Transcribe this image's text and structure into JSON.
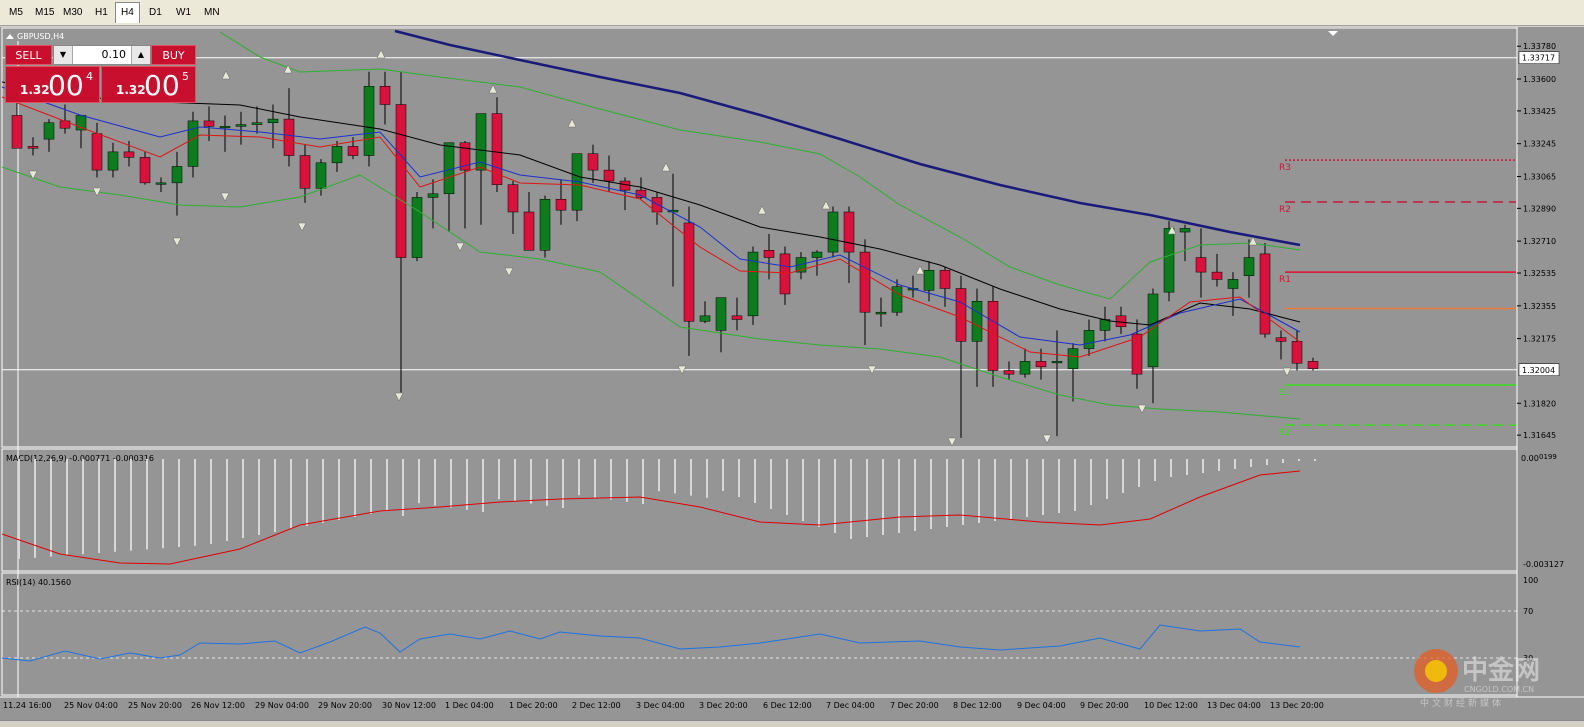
{
  "timeframes": [
    "M5",
    "M15",
    "M30",
    "H1",
    "H4",
    "D1",
    "W1",
    "MN"
  ],
  "active_timeframe": "H4",
  "symbol_label": "GBPUSD,H4",
  "trade_panel": {
    "sell_label": "SELL",
    "buy_label": "BUY",
    "lot_value": "0.10",
    "sell_price_small": "1.32",
    "sell_price_big": "00",
    "sell_price_sup": "4",
    "buy_price_small": "1.32",
    "buy_price_big": "00",
    "buy_price_sup": "5"
  },
  "price_axis": {
    "ticks": [
      "1.33780",
      "1.33600",
      "1.33425",
      "1.33245",
      "1.33065",
      "1.32890",
      "1.32710",
      "1.32535",
      "1.32355",
      "1.32175",
      "1.31820",
      "1.31645"
    ],
    "markers": [
      "1.33717",
      "1.32004"
    ]
  },
  "pivot_labels": [
    "R3",
    "R2",
    "R1",
    "S1",
    "S2"
  ],
  "macd": {
    "label": "MACD(12,26,9) -0.000771 -0.000316",
    "axis_ticks": [
      "0.00",
      "-0.003127"
    ],
    "top_value": "0199"
  },
  "rsi": {
    "label": "RSI(14) 40.1560",
    "axis_ticks": [
      "100",
      "70",
      "30"
    ]
  },
  "time_axis": [
    "11.24 16:00",
    "25 Nov 04:00",
    "25 Nov 20:00",
    "26 Nov 12:00",
    "29 Nov 04:00",
    "29 Nov 20:00",
    "30 Nov 12:00",
    "1 Dec 04:00",
    "1 Dec 20:00",
    "2 Dec 12:00",
    "3 Dec 04:00",
    "3 Dec 20:00",
    "6 Dec 12:00",
    "7 Dec 04:00",
    "7 Dec 20:00",
    "8 Dec 12:00",
    "9 Dec 04:00",
    "9 Dec 20:00",
    "10 Dec 12:00",
    "13 Dec 04:00",
    "13 Dec 20:00"
  ],
  "watermark": {
    "brand": "中金网",
    "subtitle": "中文财经新媒体",
    "url": "CNGOLD.COM.CN"
  },
  "colors": {
    "background": "#959595",
    "bull": "#0a7d1f",
    "bear": "#d4143c",
    "ma_long": "#1a1a7a",
    "macd_signal": "#e00000",
    "rsi_line": "#1e73e0"
  }
}
